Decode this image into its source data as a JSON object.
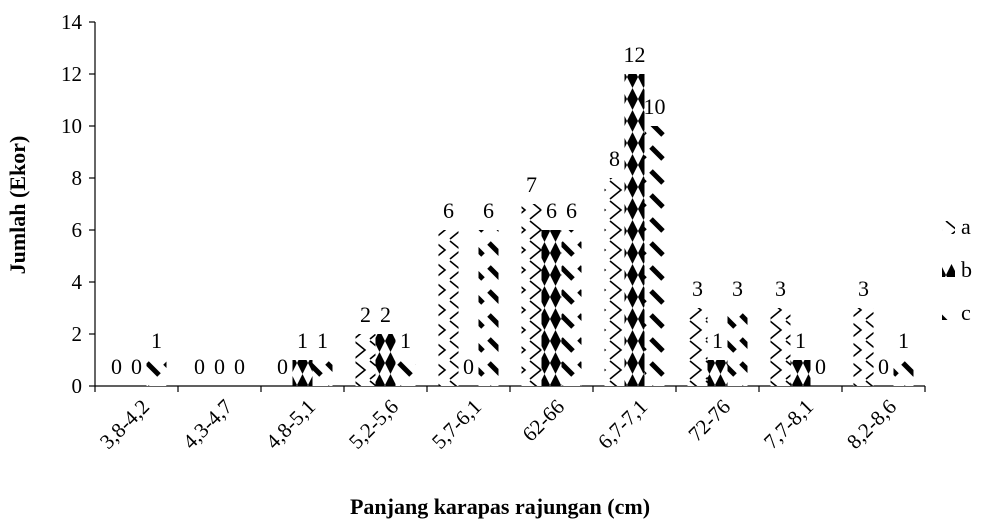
{
  "chart_data": {
    "type": "bar",
    "title": "",
    "xlabel": "Panjang karapas rajungan (cm)",
    "ylabel": "Jumlah (Ekor)",
    "ylim": [
      0,
      14
    ],
    "yticks": [
      "0",
      "2",
      "4",
      "6",
      "8",
      "10",
      "12",
      "14"
    ],
    "grid": false,
    "legend_position": "right",
    "categories": [
      "3,8-4,2",
      "4,3-4,7",
      "4,8-5,1",
      "5,2-5,6",
      "5,7-6,1",
      "62-66",
      "6,7-7,1",
      "72-76",
      "7,7-8,1",
      "8,2-8,6"
    ],
    "series": [
      {
        "name": "a",
        "values": [
          0,
          0,
          0,
          2,
          6,
          7,
          8,
          3,
          3,
          3
        ]
      },
      {
        "name": "b",
        "values": [
          0,
          0,
          1,
          2,
          0,
          6,
          12,
          1,
          1,
          0
        ]
      },
      {
        "name": "c",
        "values": [
          1,
          0,
          1,
          1,
          6,
          6,
          10,
          3,
          0,
          1
        ]
      }
    ]
  }
}
